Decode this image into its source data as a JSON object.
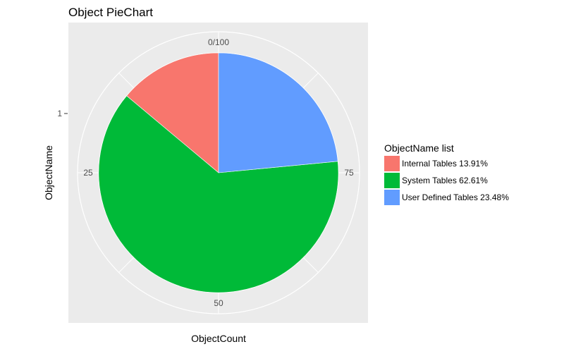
{
  "chart_data": {
    "type": "pie",
    "title": "Object PieChart",
    "xlabel": "ObjectCount",
    "ylabel": "ObjectName",
    "y_ticks": [
      "1"
    ],
    "theta_ticks": [
      {
        "label": "0/100",
        "value": 0
      },
      {
        "label": "25",
        "value": 25
      },
      {
        "label": "50",
        "value": 50
      },
      {
        "label": "75",
        "value": 75
      }
    ],
    "direction": "counterclockwise",
    "scale_max": 100,
    "legend_title": "ObjectName list",
    "legend_position": "right",
    "slices": [
      {
        "label": "Internal Tables 13.91%",
        "value": 13.91,
        "color": "#F8766D"
      },
      {
        "label": "System Tables 62.61%",
        "value": 62.61,
        "color": "#00BA38"
      },
      {
        "label": "User Defined Tables 23.48%",
        "value": 23.48,
        "color": "#619CFF"
      }
    ],
    "panel_background": "#EBEBEB",
    "grid": true
  }
}
